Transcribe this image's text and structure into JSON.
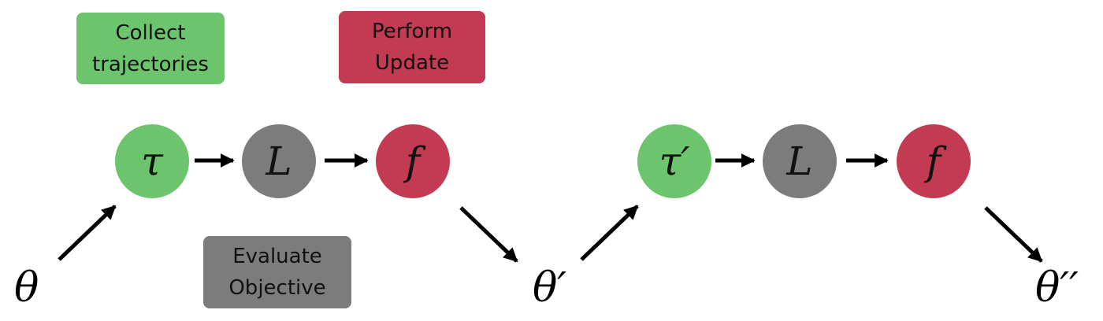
{
  "colors": {
    "collect": "#6cc56c",
    "evaluate": "#7c7c7c",
    "update": "#c23b53",
    "arrow": "#000000"
  },
  "boxes": {
    "collect": {
      "line1": "Collect",
      "line2": "trajectories"
    },
    "update": {
      "line1": "Perform",
      "line2": "Update"
    },
    "evaluate": {
      "line1": "Evaluate",
      "line2": "Objective"
    }
  },
  "step1": {
    "tau": "τ",
    "loss": "L",
    "f": "f"
  },
  "step2": {
    "tau": "τ′",
    "loss": "L",
    "f": "f"
  },
  "params": {
    "theta0": "θ",
    "theta1": "θ′",
    "theta2": "θ′′"
  }
}
